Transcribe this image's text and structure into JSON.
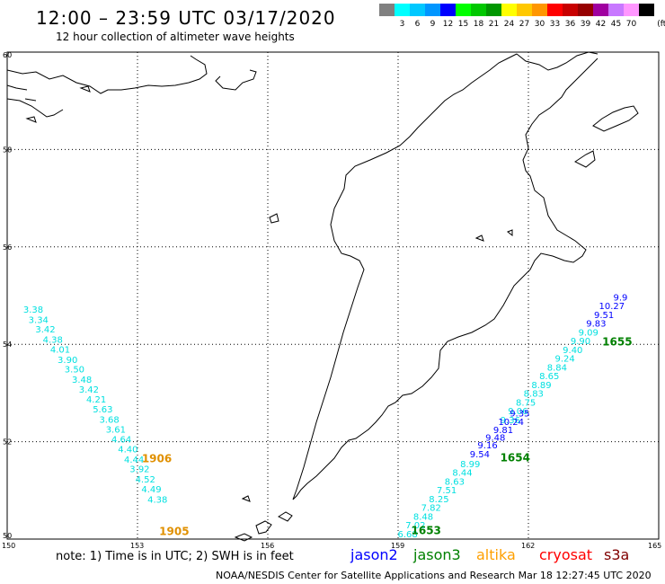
{
  "header": {
    "title": "12:00 – 23:59 UTC 03/17/2020",
    "subtitle": "12 hour collection of altimeter wave heights"
  },
  "color_scale": {
    "unit": "(ft)",
    "stops": [
      {
        "label": "",
        "color": "#808080"
      },
      {
        "label": "3",
        "color": "#00ffff"
      },
      {
        "label": "6",
        "color": "#00c8ff"
      },
      {
        "label": "9",
        "color": "#0096ff"
      },
      {
        "label": "12",
        "color": "#0000ff"
      },
      {
        "label": "15",
        "color": "#00ff00"
      },
      {
        "label": "18",
        "color": "#00c800"
      },
      {
        "label": "21",
        "color": "#009600"
      },
      {
        "label": "24",
        "color": "#ffff00"
      },
      {
        "label": "27",
        "color": "#ffc800"
      },
      {
        "label": "30",
        "color": "#ff9600"
      },
      {
        "label": "33",
        "color": "#ff0000"
      },
      {
        "label": "36",
        "color": "#c80000"
      },
      {
        "label": "39",
        "color": "#960000"
      },
      {
        "label": "42",
        "color": "#a000a0"
      },
      {
        "label": "45",
        "color": "#c878ff"
      },
      {
        "label": "70",
        "color": "#ff96ff"
      },
      {
        "label": "",
        "color": "#000000"
      }
    ]
  },
  "map": {
    "lat_labels": [
      "60",
      "58",
      "56",
      "54",
      "52",
      "50"
    ],
    "lon_labels": [
      "150",
      "153",
      "156",
      "159",
      "162",
      "165"
    ],
    "coast_color": "#000000",
    "grid_color": "#000000"
  },
  "tracks": [
    {
      "name": "cyan-pass",
      "color": "#00e0e0",
      "points": [
        {
          "lon": 150.6,
          "lat": 54.65,
          "value": "3.38"
        },
        {
          "lon": 150.72,
          "lat": 54.44,
          "value": "3.34"
        },
        {
          "lon": 150.88,
          "lat": 54.24,
          "value": "3.42"
        },
        {
          "lon": 151.05,
          "lat": 54.03,
          "value": "4.38"
        },
        {
          "lon": 151.22,
          "lat": 53.83,
          "value": "4.01"
        },
        {
          "lon": 151.39,
          "lat": 53.62,
          "value": "3.90"
        },
        {
          "lon": 151.55,
          "lat": 53.42,
          "value": "3.50"
        },
        {
          "lon": 151.72,
          "lat": 53.21,
          "value": "3.48"
        },
        {
          "lon": 151.88,
          "lat": 53.01,
          "value": "3.42"
        },
        {
          "lon": 152.05,
          "lat": 52.8,
          "value": "4.21"
        },
        {
          "lon": 152.2,
          "lat": 52.6,
          "value": "5.63"
        },
        {
          "lon": 152.35,
          "lat": 52.39,
          "value": "3.68"
        },
        {
          "lon": 152.5,
          "lat": 52.19,
          "value": "3.61"
        },
        {
          "lon": 152.63,
          "lat": 51.98,
          "value": "4.64"
        },
        {
          "lon": 152.78,
          "lat": 51.78,
          "value": "4.40"
        },
        {
          "lon": 152.92,
          "lat": 51.57,
          "value": "4.44"
        },
        {
          "lon": 153.05,
          "lat": 51.37,
          "value": "3.92"
        },
        {
          "lon": 153.18,
          "lat": 51.16,
          "value": "4.52"
        },
        {
          "lon": 153.32,
          "lat": 50.96,
          "value": "4.49"
        },
        {
          "lon": 153.46,
          "lat": 50.75,
          "value": "4.38"
        }
      ]
    },
    {
      "name": "cyan-jason3-pass",
      "color": "#00e0e0",
      "points": [
        {
          "lon": 159.22,
          "lat": 50.04,
          "value": "6.68"
        },
        {
          "lon": 159.4,
          "lat": 50.22,
          "value": "7.02"
        },
        {
          "lon": 159.58,
          "lat": 50.4,
          "value": "8.48"
        },
        {
          "lon": 159.76,
          "lat": 50.58,
          "value": "7.82"
        },
        {
          "lon": 159.94,
          "lat": 50.76,
          "value": "8.25"
        },
        {
          "lon": 160.12,
          "lat": 50.94,
          "value": "7.51"
        },
        {
          "lon": 160.3,
          "lat": 51.12,
          "value": "8.63"
        },
        {
          "lon": 160.48,
          "lat": 51.3,
          "value": "8.44"
        },
        {
          "lon": 160.66,
          "lat": 51.48,
          "value": "8.99"
        },
        {
          "lon": 161.58,
          "lat": 52.38,
          "value": "9.36"
        },
        {
          "lon": 161.76,
          "lat": 52.56,
          "value": "9.06"
        },
        {
          "lon": 161.94,
          "lat": 52.74,
          "value": "8.75"
        },
        {
          "lon": 162.12,
          "lat": 52.92,
          "value": "8.83"
        },
        {
          "lon": 162.3,
          "lat": 53.1,
          "value": "8.89"
        },
        {
          "lon": 162.48,
          "lat": 53.28,
          "value": "8.65"
        },
        {
          "lon": 162.66,
          "lat": 53.46,
          "value": "8.84"
        },
        {
          "lon": 162.84,
          "lat": 53.64,
          "value": "9.24"
        },
        {
          "lon": 163.02,
          "lat": 53.82,
          "value": "9.40"
        },
        {
          "lon": 163.2,
          "lat": 54.0,
          "value": "9.90"
        },
        {
          "lon": 163.38,
          "lat": 54.18,
          "value": "9.09"
        }
      ]
    },
    {
      "name": "blue-jason2-pass",
      "color": "#0000ff",
      "points": [
        {
          "lon": 160.88,
          "lat": 51.68,
          "value": "9.54"
        },
        {
          "lon": 161.06,
          "lat": 51.86,
          "value": "9.16"
        },
        {
          "lon": 161.24,
          "lat": 52.02,
          "value": "9.48"
        },
        {
          "lon": 161.42,
          "lat": 52.18,
          "value": "9.81"
        },
        {
          "lon": 161.6,
          "lat": 52.34,
          "value": "10.24"
        },
        {
          "lon": 161.8,
          "lat": 52.52,
          "value": "9.35"
        },
        {
          "lon": 163.56,
          "lat": 54.36,
          "value": "9.83"
        },
        {
          "lon": 163.74,
          "lat": 54.54,
          "value": "9.51"
        },
        {
          "lon": 163.92,
          "lat": 54.72,
          "value": "10.27"
        },
        {
          "lon": 164.12,
          "lat": 54.9,
          "value": "9.9"
        }
      ]
    }
  ],
  "time_labels": [
    {
      "text": "1906",
      "color": "#e09000",
      "lon": 153.1,
      "lat": 51.58
    },
    {
      "text": "1905",
      "color": "#e09000",
      "lon": 153.5,
      "lat": 50.08
    },
    {
      "text": "1653",
      "color": "#008000",
      "lon": 159.3,
      "lat": 50.1
    },
    {
      "text": "1654",
      "color": "#008000",
      "lon": 161.35,
      "lat": 51.6
    },
    {
      "text": "1655",
      "color": "#008000",
      "lon": 163.7,
      "lat": 53.98
    }
  ],
  "footer": {
    "note": "note:  1) Time is in UTC;  2) SWH is in feet",
    "satellites": [
      {
        "name": "jason2",
        "color": "#0000ff"
      },
      {
        "name": "jason3",
        "color": "#008000"
      },
      {
        "name": "altika",
        "color": "#ffa000"
      },
      {
        "name": "cryosat",
        "color": "#ff0000"
      },
      {
        "name": "s3a",
        "color": "#800000"
      }
    ],
    "credit": "NOAA/NESDIS Center for Satellite Applications and Research    Mar 18 12:27:45 UTC 2020"
  }
}
